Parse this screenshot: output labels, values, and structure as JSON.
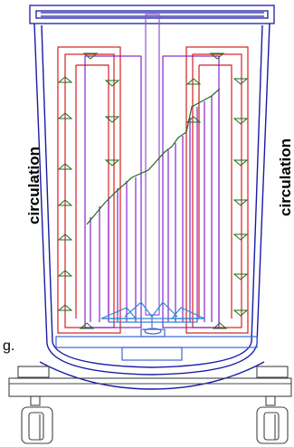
{
  "labels": {
    "left_circulation": "circulation",
    "right_circulation": "circulation",
    "fragment": "g."
  },
  "colors": {
    "vessel_outline": "#1a1aa8",
    "circulation_loop": "#d42020",
    "fins": "#7a10c8",
    "profile_line": "#1e6a1e",
    "arrow_fill": "#2a9a2a",
    "shaft": "#8a55d4",
    "stage": "#3a6ad4",
    "impeller": "#2a8ad4",
    "chassis": "#444444"
  },
  "icons": {
    "flow_arrow": "triangle-arrow-icon",
    "caster": "caster-wheel-icon"
  }
}
